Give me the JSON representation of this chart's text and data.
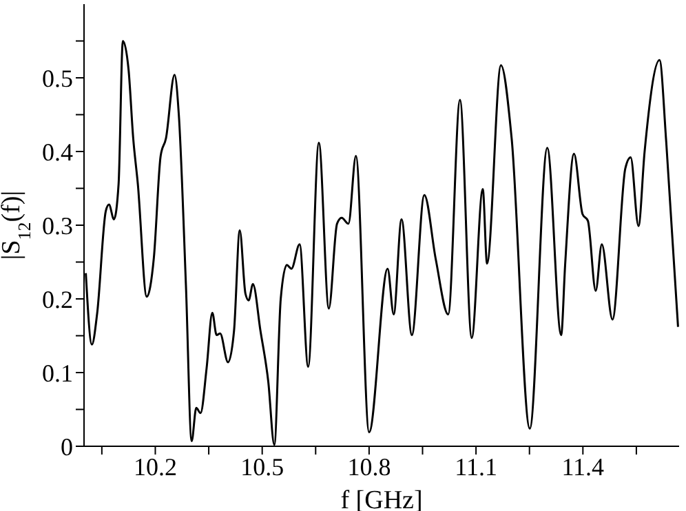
{
  "chart_data": {
    "type": "line",
    "xlabel": "f [GHz]",
    "ylabel": "|S$_{12}$(f)|",
    "xlim": [
      10.0,
      11.67
    ],
    "xticks": [
      {
        "value": 10.05,
        "label": null
      },
      10.2,
      {
        "value": 10.35,
        "label": null
      },
      10.5,
      {
        "value": 10.65,
        "label": null
      },
      10.8,
      {
        "value": 10.95,
        "label": null
      },
      11.1,
      {
        "value": 11.25,
        "label": null
      },
      11.4,
      {
        "value": 11.55,
        "label": null
      }
    ],
    "ylim": [
      0,
      0.6
    ],
    "yticks": [
      0,
      {
        "value": 0.05,
        "label": null
      },
      0.1,
      {
        "value": 0.15,
        "label": null
      },
      0.2,
      {
        "value": 0.25,
        "label": null
      },
      0.3,
      {
        "value": 0.35,
        "label": null
      },
      0.4,
      {
        "value": 0.45,
        "label": null
      },
      0.5,
      {
        "value": 0.55,
        "label": null
      }
    ],
    "grid": false,
    "legend": false,
    "marker": "none",
    "line_style": "solid",
    "series": [
      {
        "color": "#000000",
        "x": [
          10.005,
          10.022,
          10.037,
          10.061,
          10.07,
          10.084,
          10.097,
          10.109,
          10.125,
          10.138,
          10.151,
          10.176,
          10.196,
          10.215,
          10.23,
          10.254,
          10.266,
          10.286,
          10.302,
          10.315,
          10.327,
          10.344,
          10.36,
          10.372,
          10.382,
          10.404,
          10.421,
          10.437,
          10.453,
          10.462,
          10.474,
          10.495,
          10.517,
          10.534,
          10.552,
          10.569,
          10.582,
          10.605,
          10.629,
          10.659,
          10.687,
          10.71,
          10.723,
          10.742,
          10.763,
          10.8,
          10.852,
          10.869,
          10.891,
          10.92,
          10.955,
          10.987,
          11.022,
          11.055,
          11.088,
          11.119,
          11.131,
          11.17,
          11.2,
          11.251,
          11.3,
          11.339,
          11.35,
          11.375,
          11.399,
          11.414,
          11.436,
          11.453,
          11.483,
          11.519,
          11.534,
          11.556,
          11.573,
          11.615,
          11.634,
          11.667
        ],
        "values": [
          0.235,
          0.138,
          0.181,
          0.319,
          0.328,
          0.308,
          0.356,
          0.55,
          0.511,
          0.418,
          0.356,
          0.203,
          0.256,
          0.394,
          0.418,
          0.504,
          0.45,
          0.218,
          0.007,
          0.052,
          0.045,
          0.106,
          0.181,
          0.151,
          0.153,
          0.114,
          0.157,
          0.293,
          0.207,
          0.198,
          0.22,
          0.157,
          0.088,
          0.002,
          0.2,
          0.246,
          0.241,
          0.274,
          0.108,
          0.412,
          0.187,
          0.302,
          0.31,
          0.302,
          0.394,
          0.019,
          0.241,
          0.179,
          0.308,
          0.151,
          0.341,
          0.254,
          0.179,
          0.47,
          0.147,
          0.349,
          0.248,
          0.517,
          0.418,
          0.024,
          0.405,
          0.151,
          0.245,
          0.397,
          0.315,
          0.306,
          0.211,
          0.274,
          0.172,
          0.377,
          0.392,
          0.299,
          0.399,
          0.524,
          0.412,
          0.162
        ]
      }
    ]
  }
}
